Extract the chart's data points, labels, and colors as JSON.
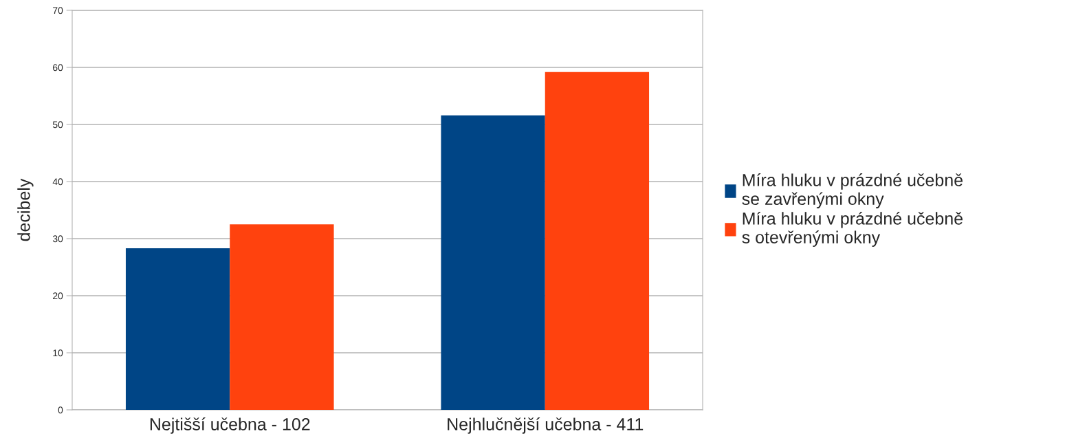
{
  "chart_data": {
    "type": "bar",
    "ylabel": "decibely",
    "categories": [
      "Nejtišší učebna - 102",
      "Nejhlučnější učebna - 411"
    ],
    "series": [
      {
        "name": "Míra hluku v prázdné učebně\nse zavřenými okny",
        "color": "#004586",
        "values": [
          28.3,
          51.6
        ]
      },
      {
        "name": "Míra hluku v prázdné učebně\ns otevřenými okny",
        "color": "#ff420e",
        "values": [
          32.5,
          59.2
        ]
      }
    ],
    "ylim": [
      0,
      70
    ],
    "yticks": [
      0,
      10,
      20,
      30,
      40,
      50,
      60,
      70
    ],
    "grid": "y",
    "legend": "right"
  }
}
